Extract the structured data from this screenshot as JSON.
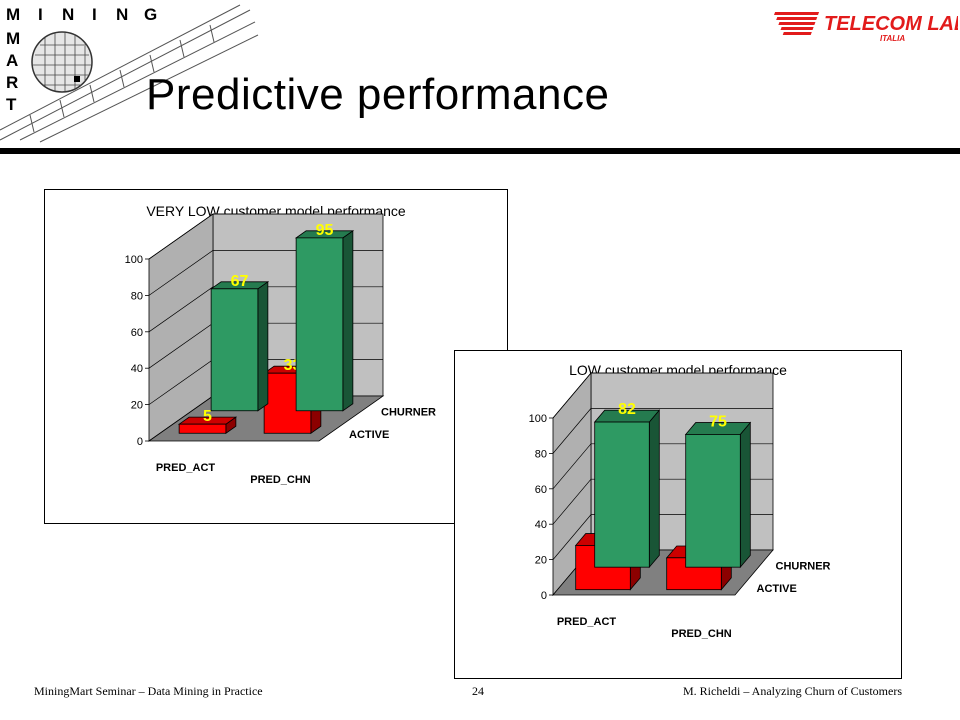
{
  "logo_left": {
    "letters_top": [
      "M",
      "I",
      "N",
      "I",
      "N",
      "G"
    ],
    "letters_side": [
      "M",
      "A",
      "R",
      "T"
    ]
  },
  "logo_right": {
    "name": "TELECOM LAB",
    "sub": "ITALIA"
  },
  "slide": {
    "title": "Predictive performance"
  },
  "chart_data": [
    {
      "type": "bar",
      "title": "VERY LOW customer model performance",
      "categories": [
        "PRED_ACT",
        "PRED_CHN"
      ],
      "series": [
        {
          "name": "CHURNER",
          "values": [
            67,
            95
          ],
          "color": "#2e9a63"
        },
        {
          "name": "ACTIVE",
          "values": [
            5,
            33
          ],
          "color": "#ff0000"
        }
      ],
      "ylim": [
        0,
        100
      ],
      "yticks": [
        "0",
        "20",
        "40",
        "60",
        "80",
        "100"
      ],
      "grid": true,
      "data_label_color": "#ffff00"
    },
    {
      "type": "bar",
      "title": "LOW customer model performance",
      "categories": [
        "PRED_ACT",
        "PRED_CHN"
      ],
      "series": [
        {
          "name": "CHURNER",
          "values": [
            82,
            75
          ],
          "color": "#2e9a63"
        },
        {
          "name": "ACTIVE",
          "values": [
            25,
            18
          ],
          "color": "#ff0000"
        }
      ],
      "ylim": [
        0,
        100
      ],
      "yticks": [
        "0",
        "20",
        "40",
        "60",
        "80",
        "100"
      ],
      "grid": true,
      "data_label_color": "#ffff00"
    }
  ],
  "footer": {
    "left": "MiningMart Seminar – Data Mining in Practice",
    "center": "24",
    "right": "M. Richeldi – Analyzing Churn of Customers"
  }
}
